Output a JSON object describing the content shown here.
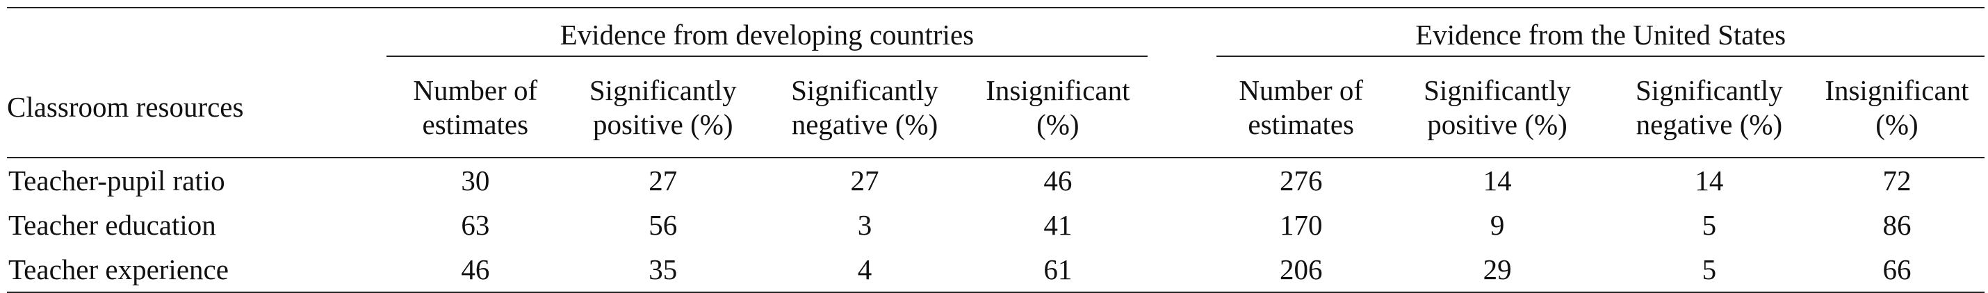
{
  "table": {
    "row_header": "Classroom resources",
    "groups": [
      {
        "title": "Evidence from developing countries",
        "columns": [
          {
            "line1": "Number of",
            "line2": "estimates"
          },
          {
            "line1": "Significantly",
            "line2": "positive (%)"
          },
          {
            "line1": "Significantly",
            "line2": "negative (%)"
          },
          {
            "line1": "Insignificant",
            "line2": "(%)"
          }
        ]
      },
      {
        "title": "Evidence from the United States",
        "columns": [
          {
            "line1": "Number of",
            "line2": "estimates"
          },
          {
            "line1": "Significantly",
            "line2": "positive (%)"
          },
          {
            "line1": "Significantly",
            "line2": "negative (%)"
          },
          {
            "line1": "Insignificant",
            "line2": "(%)"
          }
        ]
      }
    ],
    "rows": [
      {
        "label": "Teacher-pupil ratio",
        "developing": [
          "30",
          "27",
          "27",
          "46"
        ],
        "us": [
          "276",
          "14",
          "14",
          "72"
        ]
      },
      {
        "label": "Teacher education",
        "developing": [
          "63",
          "56",
          "3",
          "41"
        ],
        "us": [
          "170",
          "9",
          "5",
          "86"
        ]
      },
      {
        "label": "Teacher experience",
        "developing": [
          "46",
          "35",
          "4",
          "61"
        ],
        "us": [
          "206",
          "29",
          "5",
          "66"
        ]
      }
    ]
  }
}
